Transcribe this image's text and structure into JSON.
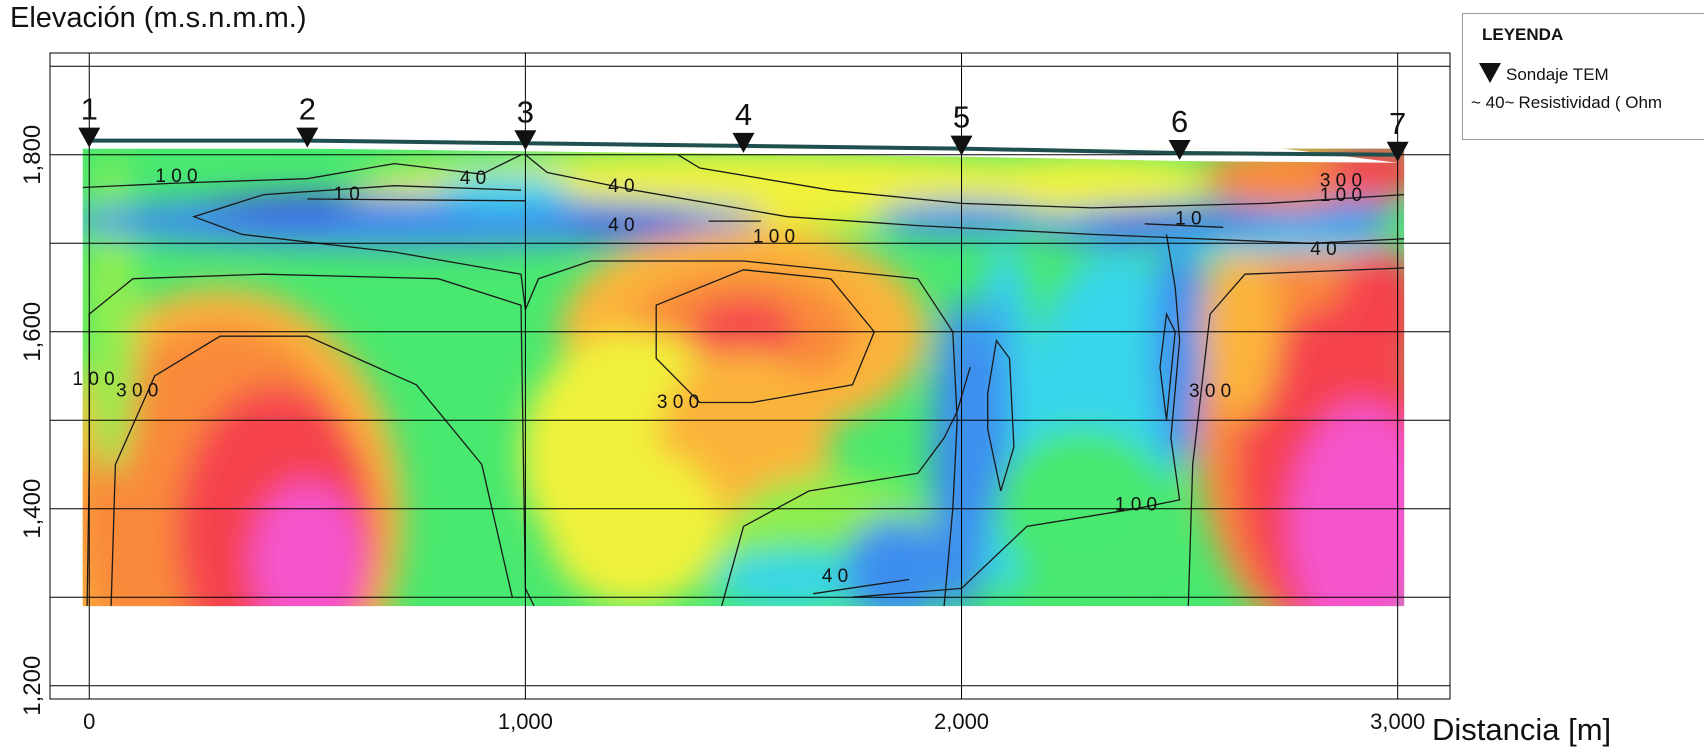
{
  "chart_data": {
    "type": "heatmap",
    "subtype": "resistivity-cross-section",
    "ylabel": "Elevación (m.s.n.m.m.)",
    "xlabel": "Distancia [m]",
    "xlim": [
      -90,
      3120
    ],
    "ylim": [
      1185,
      1915
    ],
    "x_ticks": [
      0,
      1000,
      2000,
      3000
    ],
    "x_tick_labels": [
      "0",
      "1,000",
      "2,000",
      "3,000"
    ],
    "y_ticks": [
      1200,
      1400,
      1600,
      1800
    ],
    "y_tick_labels": [
      "1,200",
      "1,400",
      "1,600",
      "1,800"
    ],
    "y_gridlines": [
      1200,
      1300,
      1400,
      1500,
      1600,
      1700,
      1800,
      1900
    ],
    "x_gridlines": [
      0,
      1000,
      2000,
      3000
    ],
    "grid": true,
    "section_x_range": [
      -15,
      3015
    ],
    "section_bottom_elevation": 1290,
    "colorscale_ohm_m": [
      {
        "value": 10,
        "color": "#3f4fe3"
      },
      {
        "value": 25,
        "color": "#3c8fef"
      },
      {
        "value": 40,
        "color": "#39d6ea"
      },
      {
        "value": 60,
        "color": "#49e86f"
      },
      {
        "value": 90,
        "color": "#8fee50"
      },
      {
        "value": 130,
        "color": "#f0f23a"
      },
      {
        "value": 200,
        "color": "#fbb43a"
      },
      {
        "value": 300,
        "color": "#f98a3a"
      },
      {
        "value": 480,
        "color": "#f5434e"
      },
      {
        "value": 800,
        "color": "#f455cc"
      }
    ],
    "soundings": [
      {
        "label": "1",
        "x": 0,
        "elevation": 1816
      },
      {
        "label": "2",
        "x": 500,
        "elevation": 1816
      },
      {
        "label": "3",
        "x": 1000,
        "elevation": 1813
      },
      {
        "label": "4",
        "x": 1500,
        "elevation": 1810
      },
      {
        "label": "5",
        "x": 2000,
        "elevation": 1807
      },
      {
        "label": "6",
        "x": 2500,
        "elevation": 1802
      },
      {
        "label": "7",
        "x": 3000,
        "elevation": 1800
      }
    ],
    "contour_labels": [
      {
        "text": "1 0 0",
        "x": 200,
        "y": 1769
      },
      {
        "text": "4 0",
        "x": 880,
        "y": 1767
      },
      {
        "text": "4 0",
        "x": 1220,
        "y": 1758
      },
      {
        "text": "1 0",
        "x": 590,
        "y": 1749
      },
      {
        "text": "4 0",
        "x": 1220,
        "y": 1714
      },
      {
        "text": "1 0 0",
        "x": 1570,
        "y": 1701
      },
      {
        "text": "3 0 0",
        "x": 2870,
        "y": 1764
      },
      {
        "text": "1 0 0",
        "x": 2870,
        "y": 1748
      },
      {
        "text": "1 0",
        "x": 2520,
        "y": 1721
      },
      {
        "text": "4 0",
        "x": 2830,
        "y": 1687
      },
      {
        "text": "1 0 0",
        "x": 10,
        "y": 1540
      },
      {
        "text": "3 0 0",
        "x": 110,
        "y": 1527
      },
      {
        "text": "3 0 0",
        "x": 1350,
        "y": 1514
      },
      {
        "text": "3 0 0",
        "x": 2570,
        "y": 1526
      },
      {
        "text": "1 0 0",
        "x": 2400,
        "y": 1398
      },
      {
        "text": "4 0",
        "x": 1710,
        "y": 1317
      }
    ]
  },
  "legend": {
    "title": "LEYENDA",
    "item_sondaje": "Sondaje TEM",
    "item_contour_prefix": "~ 40~",
    "item_contour": "Resistividad ( Ohm"
  }
}
